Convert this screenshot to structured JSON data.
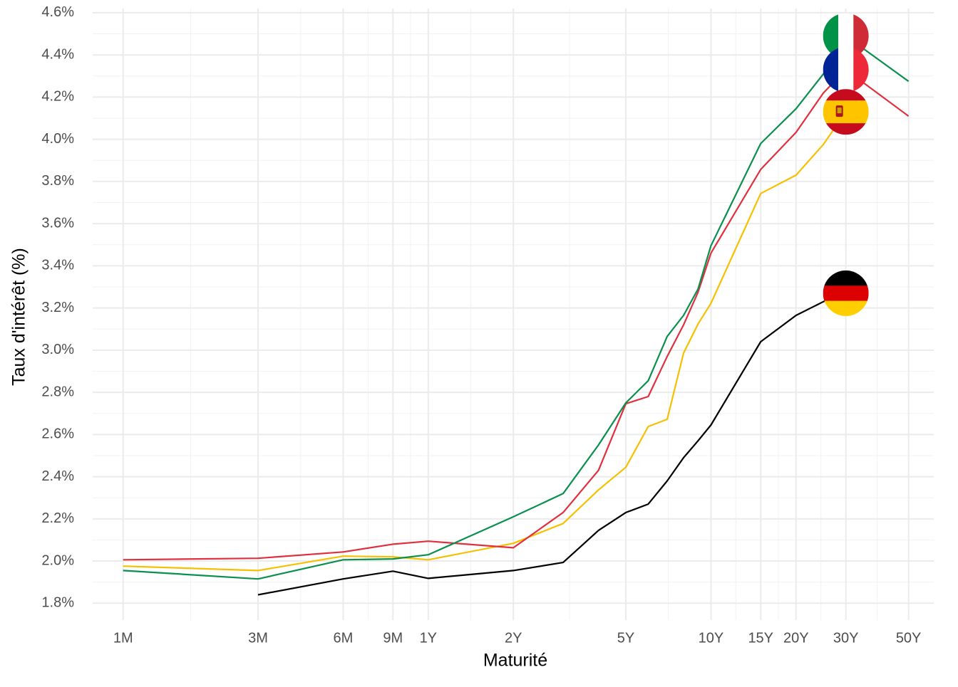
{
  "chart_data": {
    "type": "line",
    "x_label": "Maturité",
    "y_label": "Taux d'intérêt (%)",
    "x": [
      0.0833,
      0.25,
      0.5,
      0.75,
      1,
      2,
      3,
      4,
      5,
      6,
      7,
      8,
      9,
      10,
      15,
      20,
      25,
      30,
      50
    ],
    "xlog": true,
    "xlim": [
      0.065,
      61.4
    ],
    "xticks": [
      {
        "value": 0.0833,
        "label": "1M"
      },
      {
        "value": 0.25,
        "label": "3M"
      },
      {
        "value": 0.5,
        "label": "6M"
      },
      {
        "value": 0.75,
        "label": "9M"
      },
      {
        "value": 1,
        "label": "1Y"
      },
      {
        "value": 2,
        "label": "2Y"
      },
      {
        "value": 5,
        "label": "5Y"
      },
      {
        "value": 10,
        "label": "10Y"
      },
      {
        "value": 15,
        "label": "15Y"
      },
      {
        "value": 20,
        "label": "20Y"
      },
      {
        "value": 30,
        "label": "30Y"
      },
      {
        "value": 50,
        "label": "50Y"
      }
    ],
    "ylim": [
      1.72,
      4.62
    ],
    "yticks": [
      {
        "value": 1.8,
        "label": "1.8%"
      },
      {
        "value": 2.0,
        "label": "2.0%"
      },
      {
        "value": 2.2,
        "label": "2.2%"
      },
      {
        "value": 2.4,
        "label": "2.4%"
      },
      {
        "value": 2.6,
        "label": "2.6%"
      },
      {
        "value": 2.8,
        "label": "2.8%"
      },
      {
        "value": 3.0,
        "label": "3.0%"
      },
      {
        "value": 3.2,
        "label": "3.2%"
      },
      {
        "value": 3.4,
        "label": "3.4%"
      },
      {
        "value": 3.6,
        "label": "3.6%"
      },
      {
        "value": 3.8,
        "label": "3.8%"
      },
      {
        "value": 4.0,
        "label": "4.0%"
      },
      {
        "value": 4.2,
        "label": "4.2%"
      },
      {
        "value": 4.4,
        "label": "4.4%"
      },
      {
        "value": 4.6,
        "label": "4.6%"
      }
    ],
    "grid": true,
    "series": [
      {
        "color": "#000000",
        "values": [
          null,
          1.84,
          1.915,
          1.952,
          1.918,
          1.955,
          1.993,
          2.145,
          2.23,
          2.27,
          2.38,
          2.49,
          2.57,
          2.645,
          3.04,
          3.165,
          3.23,
          3.27,
          null
        ]
      },
      {
        "color": "#f5c000",
        "values": [
          1.976,
          1.955,
          2.023,
          2.02,
          2.006,
          2.084,
          2.178,
          2.337,
          2.445,
          2.638,
          2.672,
          2.986,
          3.124,
          3.222,
          3.743,
          3.83,
          3.976,
          4.13,
          null
        ]
      },
      {
        "color": "#e0303f",
        "values": [
          2.006,
          2.013,
          2.043,
          2.08,
          2.094,
          2.063,
          2.23,
          2.43,
          2.746,
          2.78,
          2.97,
          3.12,
          3.275,
          3.46,
          3.857,
          4.033,
          4.22,
          4.33,
          4.11
        ]
      },
      {
        "color": "#0a8f4f",
        "values": [
          1.955,
          1.915,
          2.006,
          2.01,
          2.03,
          2.21,
          2.32,
          2.55,
          2.75,
          2.855,
          3.065,
          3.165,
          3.29,
          3.495,
          3.98,
          4.145,
          4.31,
          4.49,
          4.275
        ]
      }
    ]
  }
}
